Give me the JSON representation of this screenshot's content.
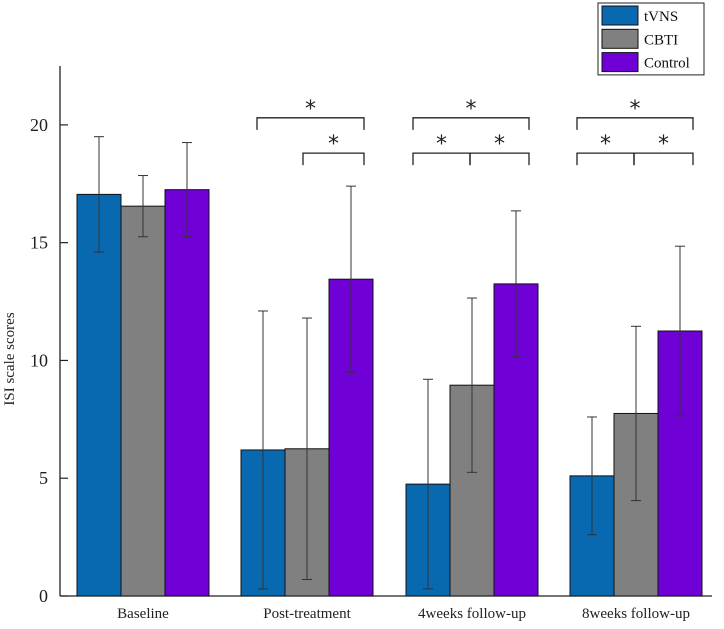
{
  "chart_data": {
    "type": "bar",
    "title": "",
    "xlabel": "",
    "ylabel": "ISI scale scores",
    "ylim": [
      0,
      22.5
    ],
    "yticks": [
      0,
      5,
      10,
      15,
      20
    ],
    "grid": false,
    "legend_position": "top-right",
    "categories": [
      "Baseline",
      "Post-treatment",
      "4weeks follow-up",
      "8weeks follow-up"
    ],
    "series": [
      {
        "name": "tVNS",
        "color": "#0868b0",
        "values": [
          17.05,
          6.2,
          4.75,
          5.1
        ],
        "errors": [
          2.45,
          5.9,
          4.45,
          2.5
        ]
      },
      {
        "name": "CBTI",
        "color": "#808080",
        "values": [
          16.55,
          6.25,
          8.95,
          7.75
        ],
        "errors": [
          1.3,
          5.55,
          3.7,
          3.7
        ]
      },
      {
        "name": "Control",
        "color": "#6f00d6",
        "values": [
          17.25,
          13.45,
          13.25,
          11.25
        ],
        "errors": [
          2.0,
          3.95,
          3.1,
          3.6
        ]
      }
    ],
    "significance": [
      {
        "category": 1,
        "from": 0,
        "to": 2,
        "symbol": "*"
      },
      {
        "category": 1,
        "from": 1,
        "to": 2,
        "symbol": "*"
      },
      {
        "category": 2,
        "from": 0,
        "to": 2,
        "symbol": "*"
      },
      {
        "category": 2,
        "from": 0,
        "to": 1,
        "symbol": "*"
      },
      {
        "category": 2,
        "from": 1,
        "to": 2,
        "symbol": "*"
      },
      {
        "category": 3,
        "from": 0,
        "to": 2,
        "symbol": "*"
      },
      {
        "category": 3,
        "from": 0,
        "to": 1,
        "symbol": "*"
      },
      {
        "category": 3,
        "from": 1,
        "to": 2,
        "symbol": "*"
      }
    ]
  }
}
